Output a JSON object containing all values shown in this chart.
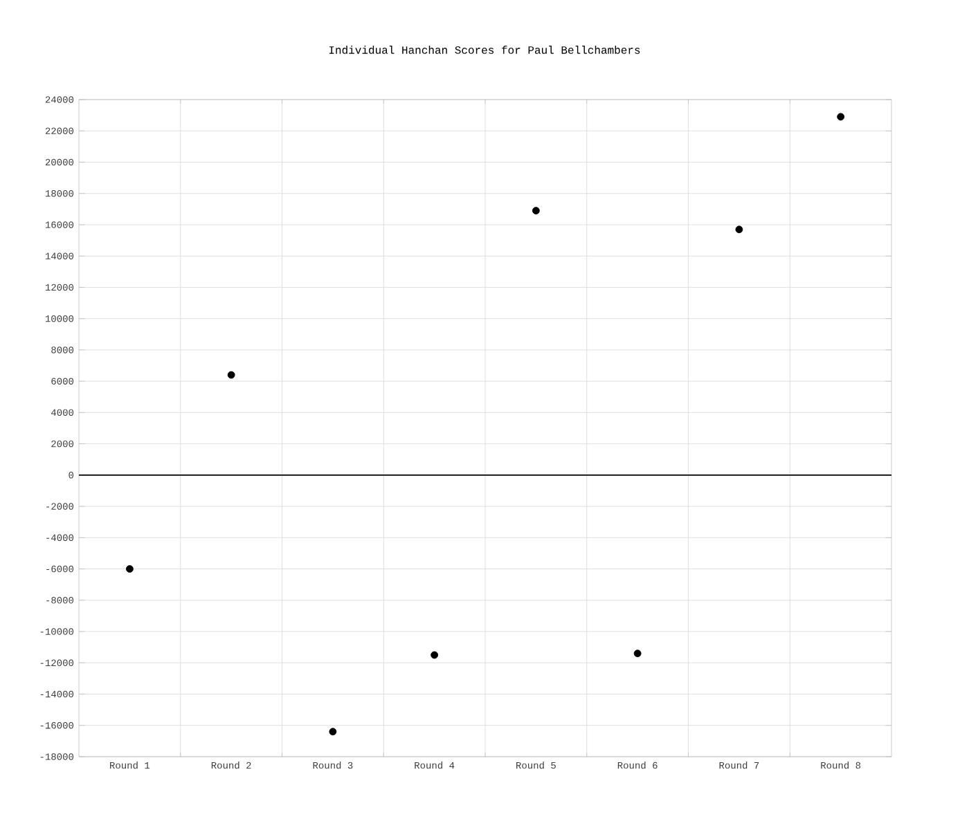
{
  "chart_data": {
    "type": "scatter",
    "title": "Individual Hanchan Scores for Paul Bellchambers",
    "categories": [
      "Round 1",
      "Round 2",
      "Round 3",
      "Round 4",
      "Round 5",
      "Round 6",
      "Round 7",
      "Round 8"
    ],
    "values": [
      -6000,
      6400,
      -16400,
      -11500,
      16900,
      -11400,
      15700,
      22900
    ],
    "color": "#000000",
    "grid": true,
    "ylim": [
      -18000,
      24000
    ],
    "yticks": [
      -18000,
      -16000,
      -14000,
      -12000,
      -10000,
      -8000,
      -6000,
      -4000,
      -2000,
      0,
      2000,
      4000,
      6000,
      8000,
      10000,
      12000,
      14000,
      16000,
      18000,
      20000,
      22000,
      24000
    ],
    "ref_lines": [
      {
        "axis": "y",
        "value": 0,
        "color": "#000000"
      }
    ]
  }
}
